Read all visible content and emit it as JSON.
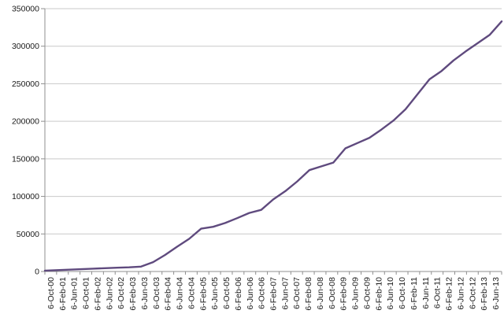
{
  "chart_data": {
    "type": "line",
    "title": "",
    "legend": "none",
    "grid": "horizontal-major",
    "x_labels": [
      "6-Oct-00",
      "6-Feb-01",
      "6-Jun-01",
      "6-Oct-01",
      "6-Feb-02",
      "6-Jun-02",
      "6-Oct-02",
      "6-Feb-03",
      "6-Jun-03",
      "6-Oct-03",
      "6-Feb-04",
      "6-Jun-04",
      "6-Oct-04",
      "6-Feb-05",
      "6-Jun-05",
      "6-Oct-05",
      "6-Feb-06",
      "6-Jun-06",
      "6-Oct-06",
      "6-Feb-07",
      "6-Jun-07",
      "6-Oct-07",
      "6-Feb-08",
      "6-Jun-08",
      "6-Oct-08",
      "6-Feb-09",
      "6-Jun-09",
      "6-Oct-09",
      "6-Feb-10",
      "6-Jun-10",
      "6-Oct-10",
      "6-Feb-11",
      "6-Jun-11",
      "6-Oct-11",
      "6-Feb-12",
      "6-Jun-12",
      "6-Oct-12",
      "6-Feb-13",
      "6-Jun-13"
    ],
    "series": [
      {
        "name": "cumulative-total",
        "color": "#5F4A7E",
        "values": [
          1200,
          1800,
          2400,
          3000,
          3800,
          4400,
          5000,
          5600,
          6500,
          12500,
          22000,
          33000,
          43500,
          57000,
          59500,
          64500,
          71000,
          78000,
          82000,
          96000,
          107000,
          120000,
          135000,
          140000,
          145000,
          164000,
          171000,
          178000,
          189000,
          201000,
          216000,
          236000,
          256000,
          267000,
          281000,
          293000,
          304000,
          315000,
          333000
        ]
      }
    ],
    "ylim": [
      0,
      350000
    ],
    "ytick_step": 50000,
    "ytick_labels": [
      "0",
      "50000",
      "100000",
      "150000",
      "200000",
      "250000",
      "300000",
      "350000"
    ],
    "xlabel": "",
    "ylabel": "",
    "axis_color": "#8f8f8f",
    "gridline_color": "#c9c9c9",
    "tick_label_color": "#1a1a1a",
    "background_color": "#ffffff",
    "line_width": 2.4
  }
}
